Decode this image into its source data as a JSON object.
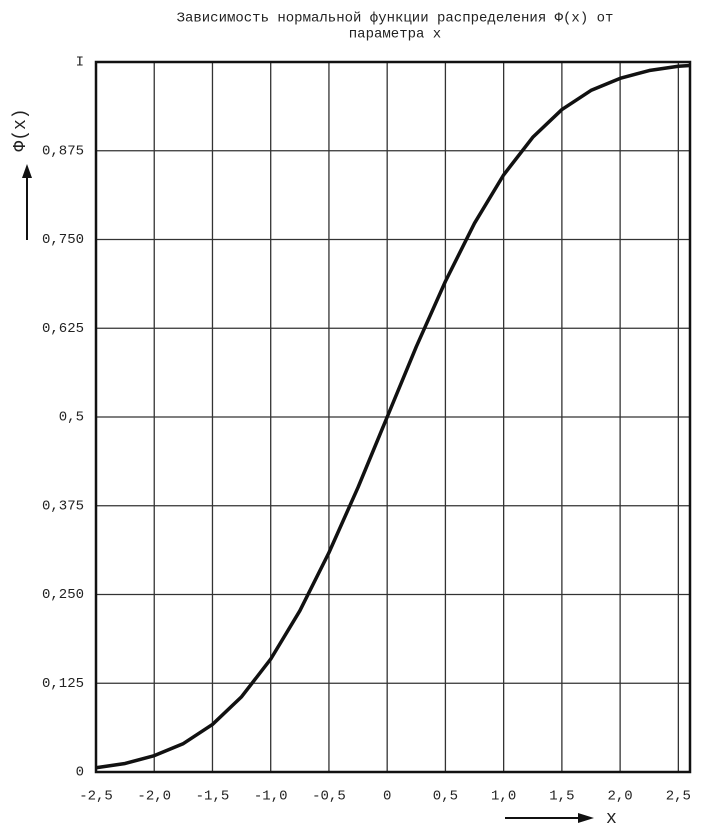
{
  "chart_data": {
    "type": "line",
    "title": [
      "Зависимость нормальной функции распределения Φ(x) от",
      "параметра x"
    ],
    "y_label": "Φ(x)",
    "x_label": "x",
    "x": [
      -2.5,
      -2.25,
      -2.0,
      -1.75,
      -1.5,
      -1.25,
      -1.0,
      -0.75,
      -0.5,
      -0.25,
      0,
      0.25,
      0.5,
      0.75,
      1.0,
      1.25,
      1.5,
      1.75,
      2.0,
      2.25,
      2.5,
      2.6
    ],
    "series": [
      {
        "name": "Φ(x)",
        "color": "#111111",
        "values": [
          0.006,
          0.012,
          0.023,
          0.04,
          0.067,
          0.106,
          0.159,
          0.227,
          0.309,
          0.401,
          0.5,
          0.599,
          0.691,
          0.773,
          0.841,
          0.894,
          0.933,
          0.96,
          0.977,
          0.988,
          0.994,
          0.995
        ]
      }
    ],
    "xlim": [
      -2.5,
      2.6
    ],
    "ylim": [
      0,
      1
    ],
    "xticks": [
      {
        "value": -2.5,
        "label": "-2,5"
      },
      {
        "value": -2.0,
        "label": "-2,0"
      },
      {
        "value": -1.5,
        "label": "-1,5"
      },
      {
        "value": -1.0,
        "label": "-1,0"
      },
      {
        "value": -0.5,
        "label": "-0,5"
      },
      0,
      {
        "value": 0.5,
        "label": "0,5"
      },
      {
        "value": 1.0,
        "label": "1,0"
      },
      {
        "value": 1.5,
        "label": "1,5"
      },
      {
        "value": 2.0,
        "label": "2,0"
      },
      {
        "value": 2.5,
        "label": "2,5"
      }
    ],
    "yticks": [
      0,
      {
        "value": 0.125,
        "label": "0,125"
      },
      {
        "value": 0.25,
        "label": "0,250"
      },
      {
        "value": 0.375,
        "label": "0,375"
      },
      {
        "value": 0.5,
        "label": "0,5"
      },
      {
        "value": 0.625,
        "label": "0,625"
      },
      {
        "value": 0.75,
        "label": "0,750"
      },
      {
        "value": 0.875,
        "label": "0,875"
      },
      {
        "value": 1,
        "label": "I"
      }
    ],
    "grid": true
  }
}
